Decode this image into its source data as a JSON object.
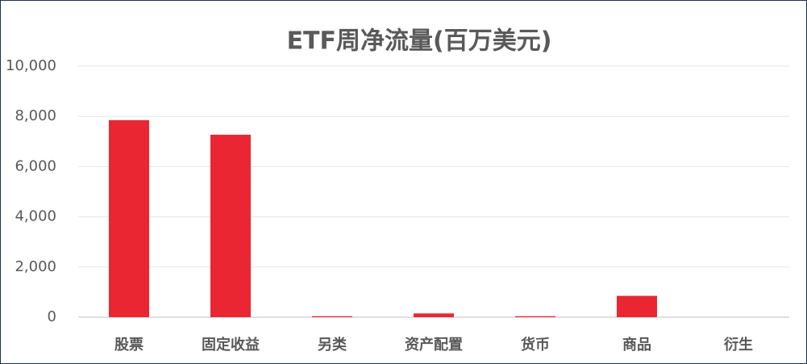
{
  "chart_data": {
    "type": "bar",
    "title": "ETF周净流量(百万美元)",
    "categories": [
      "股票",
      "固定收益",
      "另类",
      "资产配置",
      "货币",
      "商品",
      "衍生"
    ],
    "values": [
      7850,
      7270,
      40,
      150,
      40,
      850,
      0
    ],
    "color": "#ea2633",
    "ylim": [
      0,
      10000
    ],
    "yticks": [
      0,
      {
        "value": 2000,
        "label": "2,000"
      },
      {
        "value": 4000,
        "label": "4,000"
      },
      {
        "value": 6000,
        "label": "6,000"
      },
      {
        "value": 8000,
        "label": "8,000"
      },
      {
        "value": 10000,
        "label": "10,000"
      }
    ],
    "grid": true
  }
}
